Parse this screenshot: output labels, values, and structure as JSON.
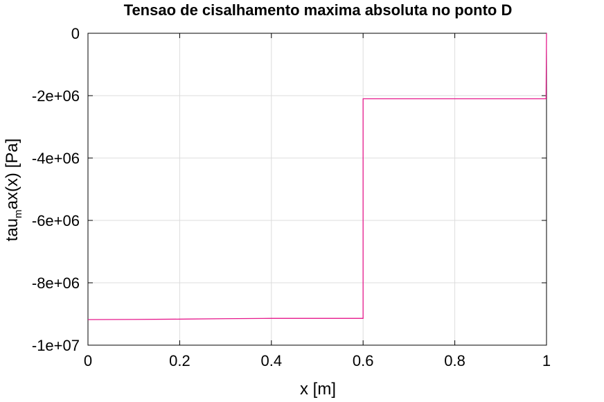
{
  "chart_data": {
    "type": "line",
    "title": "Tensao de cisalhamento maxima absoluta no ponto D",
    "xlabel": "x [m]",
    "ylabel": {
      "prefix": "tau",
      "subscript": "m",
      "suffix": "ax(x) [Pa]"
    },
    "xlim": [
      0,
      1
    ],
    "ylim": [
      -10000000,
      0
    ],
    "x_ticks": [
      {
        "value": 0,
        "label": "0"
      },
      {
        "value": 0.2,
        "label": "0.2"
      },
      {
        "value": 0.4,
        "label": "0.4"
      },
      {
        "value": 0.6,
        "label": "0.6"
      },
      {
        "value": 0.8,
        "label": "0.8"
      },
      {
        "value": 1,
        "label": "1"
      }
    ],
    "y_ticks": [
      {
        "value": 0,
        "label": "0"
      },
      {
        "value": -2000000,
        "label": "-2e+06"
      },
      {
        "value": -4000000,
        "label": "-4e+06"
      },
      {
        "value": -6000000,
        "label": "-6e+06"
      },
      {
        "value": -8000000,
        "label": "-8e+06"
      },
      {
        "value": -10000000,
        "label": "-1e+07"
      }
    ],
    "grid": true,
    "series": [
      {
        "color": "#e6198c",
        "x": [
          0,
          0.1,
          0.2,
          0.3,
          0.4,
          0.5,
          0.6,
          0.6,
          0.7,
          0.8,
          0.9,
          0.999,
          1.0
        ],
        "y": [
          -9180000,
          -9175000,
          -9165000,
          -9150000,
          -9140000,
          -9140000,
          -9140000,
          -2100000,
          -2100000,
          -2100000,
          -2100000,
          -2100000,
          0
        ]
      }
    ]
  }
}
